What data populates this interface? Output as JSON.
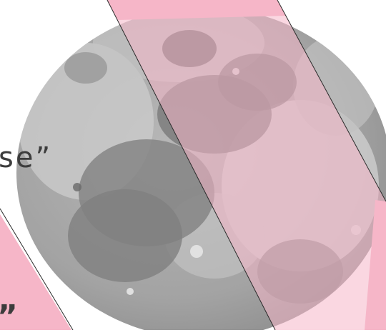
{
  "image": {
    "subject": "moon-photograph",
    "overlay_color": "#f6b6c8",
    "stripe_line_color": "#2b2b2b",
    "moon_base_color": "#9a9a9a",
    "moon_highland_color": "#cfcfcf",
    "moon_mare_color": "#808080"
  },
  "quote": {
    "fragment_top": "se”",
    "fragment_bottom": "”"
  }
}
